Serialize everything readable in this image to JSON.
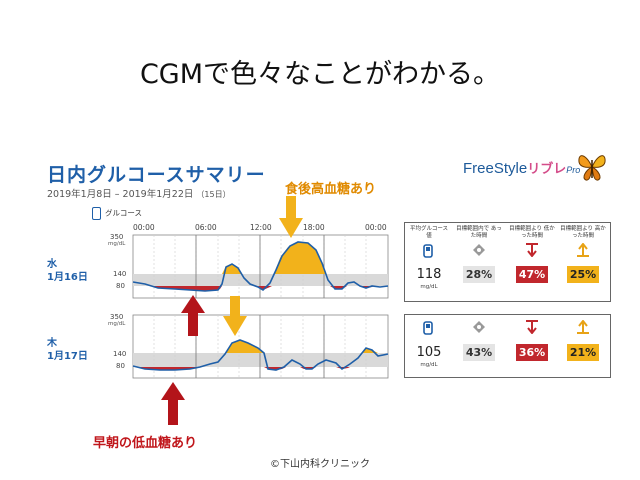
{
  "slide": {
    "title": "CGMで色々なことがわかる。",
    "credit": "©下山内科クリニック"
  },
  "summary": {
    "title": "日内グルコースサマリー",
    "dates": "2019年1月8日 – 2019年1月22日",
    "days": "（15日）",
    "brand_main": "FreeStyle",
    "brand_sub": "リブレ",
    "brand_pro": "Pro",
    "legend": "グルコース"
  },
  "time_axis": [
    "00:00",
    "06:00",
    "12:00",
    "18:00",
    "00:00"
  ],
  "y_axis": {
    "top": "350",
    "unit": "mg/dL",
    "high": "140",
    "low": "80"
  },
  "days": [
    {
      "weekday": "水",
      "date": "1月16日",
      "avg": "118",
      "unit": "mg/dL",
      "in_range": "28%",
      "below": "47%",
      "above": "25%"
    },
    {
      "weekday": "木",
      "date": "1月17日",
      "avg": "105",
      "unit": "mg/dL",
      "in_range": "43%",
      "below": "36%",
      "above": "21%"
    }
  ],
  "stats_headers": {
    "avg": "平均グルコース値",
    "in_range": "目標範囲内で あった時間",
    "below": "目標範囲より 低かった時間",
    "above": "目標範囲より 高かった時間"
  },
  "annotations": {
    "hyper": "食後高血糖あり",
    "hypo": "早朝の低血糖あり"
  },
  "colors": {
    "line": "#1f5fa8",
    "high": "#f2b21b",
    "low": "#c1272d",
    "band": "#d9d9d9"
  }
}
